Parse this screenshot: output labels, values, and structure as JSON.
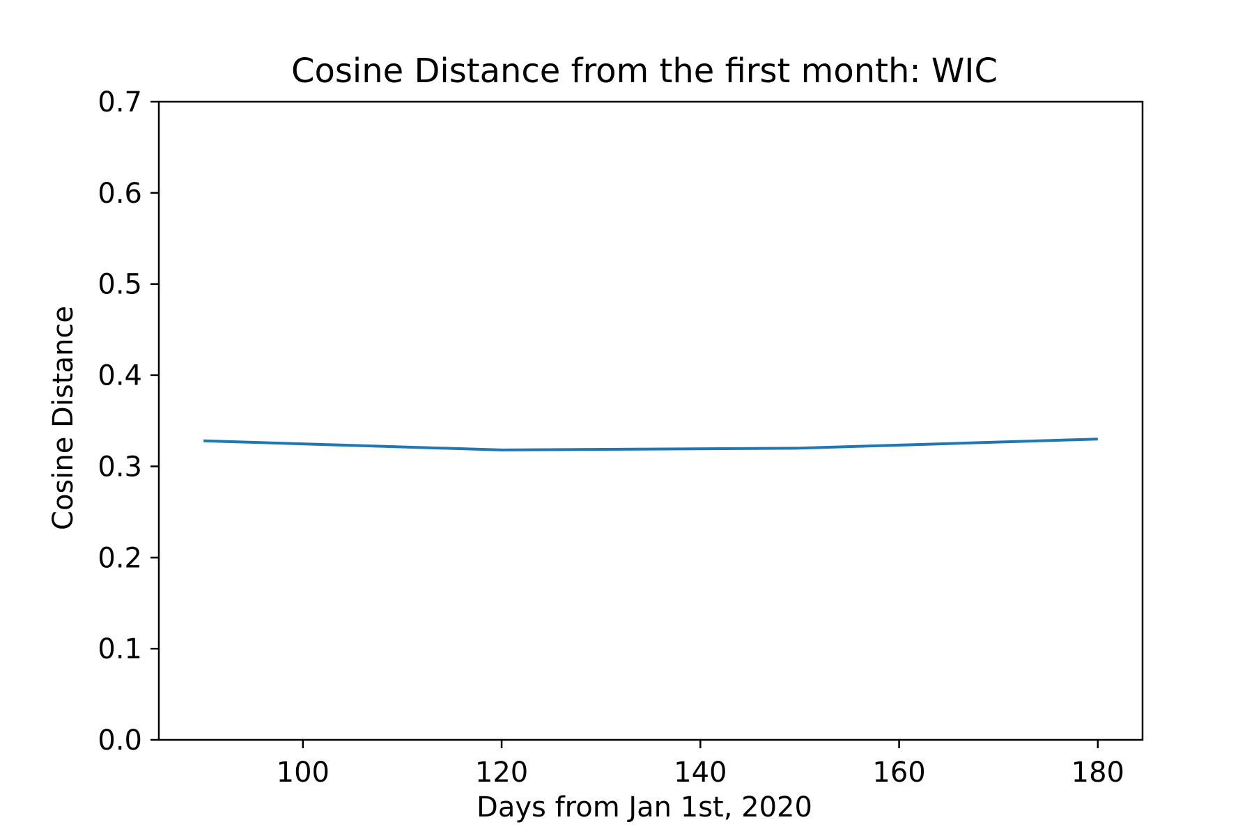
{
  "chart_data": {
    "type": "line",
    "title": "Cosine Distance from the first month: WIC",
    "xlabel": "Days from Jan 1st, 2020",
    "ylabel": "Cosine Distance",
    "xlim": [
      85.5,
      184.5
    ],
    "ylim": [
      0,
      0.7
    ],
    "x_ticks": [
      100,
      120,
      140,
      160,
      180
    ],
    "x_tick_labels": [
      "100",
      "120",
      "140",
      "160",
      "180"
    ],
    "y_ticks": [
      0,
      0.1,
      0.2,
      0.3,
      0.4,
      0.5,
      0.6,
      0.7
    ],
    "y_tick_labels": [
      "0.0",
      "0.1",
      "0.2",
      "0.3",
      "0.4",
      "0.5",
      "0.6",
      "0.7"
    ],
    "grid": false,
    "legend": "none",
    "series": [
      {
        "color": "#1f77b4",
        "x": [
          90,
          120,
          150,
          180
        ],
        "y": [
          0.328,
          0.318,
          0.32,
          0.33
        ]
      }
    ]
  }
}
